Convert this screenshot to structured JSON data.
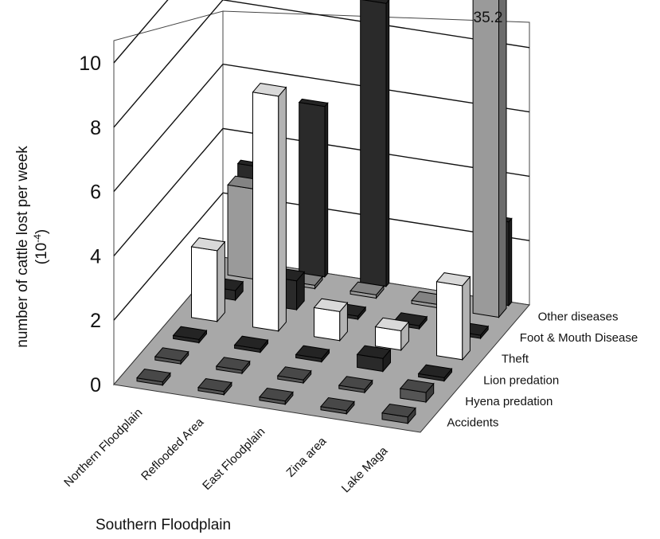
{
  "chart_data": {
    "type": "bar",
    "title": "",
    "ylabel": "number of cattle lost per week",
    "ylabel_unit": "(10",
    "ylabel_unit_exp": "-4",
    "ylabel_unit_close": ")",
    "xlabel": "Southern Floodplain",
    "ylim": [
      0,
      10
    ],
    "yticks": [
      "0",
      "2",
      "4",
      "6",
      "8",
      "10"
    ],
    "categories": [
      "Northern Floodplain",
      "Reflooded Area",
      "East Floodplain",
      "Zina area",
      "Lake Maga"
    ],
    "series": [
      {
        "name": "Accidents",
        "color": "#555555",
        "values": [
          0.1,
          0.1,
          0.1,
          0.1,
          0.2
        ]
      },
      {
        "name": "Hyena predation",
        "color": "#555555",
        "values": [
          0.1,
          0.1,
          0.1,
          0.1,
          0.3
        ]
      },
      {
        "name": "Lion predation",
        "color": "#2a2a2a",
        "values": [
          0.1,
          0.1,
          0.1,
          0.4,
          0.1
        ]
      },
      {
        "name": "Theft",
        "color": "#ffffff",
        "values": [
          2.2,
          7.3,
          0.9,
          0.6,
          2.3
        ]
      },
      {
        "name": "Foot & Mouth Disease",
        "color": "#2a2a2a",
        "values": [
          0.3,
          0.9,
          0.1,
          0.1,
          0.1
        ]
      },
      {
        "name": "Other diseases",
        "color": "#9a9a9a",
        "values": [
          2.8,
          0.1,
          0.1,
          0.1,
          10.5
        ]
      }
    ],
    "extra_bars": [
      {
        "category": "Northern Floodplain",
        "color": "#2a2a2a",
        "value": 3.1
      },
      {
        "category": "Reflooded Area",
        "color": "#2a2a2a",
        "value": 5.3
      },
      {
        "category": "East Floodplain",
        "color": "#2a2a2a",
        "value": 8.8
      },
      {
        "category": "Lake Maga",
        "color": "#2a2a2a",
        "value": 2.6
      }
    ],
    "annotation": "35.2",
    "grid": true
  }
}
